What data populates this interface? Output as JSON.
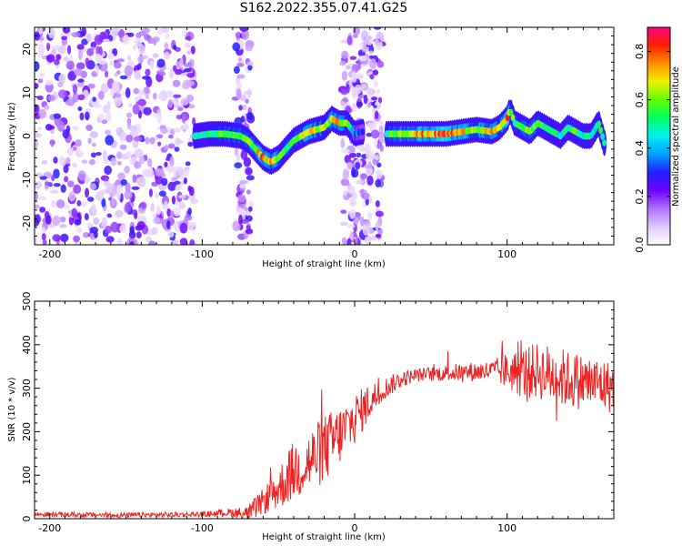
{
  "title": "S162.2022.355.07.41.G25",
  "chart_data": [
    {
      "type": "heatmap",
      "title": "S162.2022.355.07.41.G25",
      "xlabel": "Height of straight line (km)",
      "ylabel": "Frequency (Hz)",
      "xlim": [
        -210,
        170
      ],
      "ylim": [
        -25,
        25
      ],
      "x_ticks": [
        -200,
        -100,
        0,
        100
      ],
      "y_ticks": [
        -20,
        -10,
        0,
        10,
        20
      ],
      "colorbar": {
        "label": "Normalized spectral amplitude",
        "range": [
          0.0,
          0.9
        ],
        "ticks": [
          0.0,
          0.2,
          0.4,
          0.6,
          0.8
        ],
        "colors": [
          "#ffffff",
          "#e0c8ff",
          "#b070ff",
          "#7000ff",
          "#2020ff",
          "#00a0ff",
          "#00f0f0",
          "#00ff60",
          "#60ff00",
          "#f0f000",
          "#ff9000",
          "#ff2000",
          "#ff0080"
        ]
      },
      "ridge": {
        "x": [
          -105,
          -95,
          -85,
          -75,
          -70,
          -65,
          -60,
          -55,
          -50,
          -45,
          -40,
          -35,
          -30,
          -25,
          -20,
          -15,
          -10,
          -5,
          0,
          5,
          20,
          30,
          40,
          50,
          60,
          70,
          80,
          90,
          95,
          100,
          102,
          105,
          110,
          115,
          120,
          125,
          130,
          135,
          140,
          145,
          150,
          155,
          160,
          165
        ],
        "y": [
          0,
          0.5,
          0.5,
          0,
          -1,
          -3,
          -5,
          -6,
          -5,
          -3,
          -1,
          0,
          1,
          1.5,
          2,
          4,
          3,
          3,
          0.5,
          1,
          0.5,
          0.5,
          0.5,
          0.5,
          0.5,
          1,
          1.5,
          1,
          2,
          4,
          6,
          3,
          2,
          1,
          3,
          2,
          1,
          0,
          2,
          1,
          0,
          0,
          3,
          -3
        ],
        "amplitude": [
          0.45,
          0.5,
          0.55,
          0.6,
          0.55,
          0.65,
          0.75,
          0.7,
          0.6,
          0.55,
          0.5,
          0.6,
          0.7,
          0.65,
          0.6,
          0.65,
          0.7,
          0.55,
          0.35,
          0.3,
          0.5,
          0.65,
          0.7,
          0.75,
          0.8,
          0.7,
          0.65,
          0.7,
          0.6,
          0.75,
          0.65,
          0.5,
          0.55,
          0.6,
          0.55,
          0.5,
          0.55,
          0.45,
          0.5,
          0.55,
          0.5,
          0.45,
          0.5,
          0.45
        ]
      },
      "noise_bands": [
        [
          -210,
          -105
        ],
        [
          -78,
          -68
        ],
        [
          -8,
          18
        ]
      ]
    },
    {
      "type": "line",
      "xlabel": "Height of straight line (km)",
      "ylabel": "SNR (10 * v/v)",
      "xlim": [
        -210,
        170
      ],
      "ylim": [
        0,
        500
      ],
      "x_ticks": [
        -200,
        -100,
        0,
        100
      ],
      "y_ticks": [
        0,
        100,
        200,
        300,
        400,
        500
      ],
      "color": "#ee2222",
      "trend": {
        "x": [
          -210,
          -150,
          -100,
          -80,
          -70,
          -60,
          -50,
          -40,
          -30,
          -20,
          -10,
          0,
          10,
          20,
          30,
          40,
          60,
          80,
          100,
          110,
          120,
          130,
          140,
          150,
          160,
          170
        ],
        "y": [
          10,
          8,
          10,
          15,
          10,
          40,
          70,
          110,
          130,
          160,
          190,
          230,
          270,
          300,
          320,
          330,
          335,
          338,
          340,
          335,
          340,
          330,
          320,
          315,
          310,
          300
        ]
      },
      "noise_amplitude": {
        "x": [
          -210,
          -100,
          -80,
          -60,
          -40,
          -20,
          0,
          20,
          40,
          90,
          110,
          130,
          170
        ],
        "y": [
          6,
          6,
          10,
          30,
          70,
          80,
          60,
          25,
          15,
          25,
          60,
          70,
          60
        ]
      }
    }
  ]
}
